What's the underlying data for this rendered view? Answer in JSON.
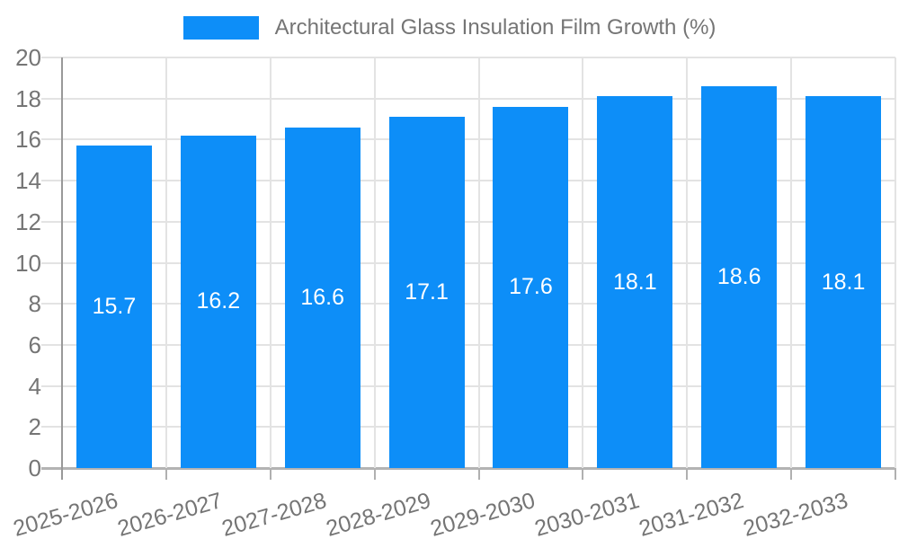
{
  "chart_data": {
    "type": "bar",
    "title": "Architectural Glass Insulation Film Growth (%)",
    "categories": [
      "2025-2026",
      "2026-2027",
      "2027-2028",
      "2028-2029",
      "2029-2030",
      "2030-2031",
      "2031-2032",
      "2032-2033"
    ],
    "values": [
      15.7,
      16.2,
      16.6,
      17.1,
      17.6,
      18.1,
      18.6,
      18.1
    ],
    "bar_labels": [
      "15.7",
      "16.2",
      "16.6",
      "17.1",
      "17.6",
      "18.1",
      "18.6",
      "18.1"
    ],
    "xlabel": "",
    "ylabel": "",
    "ylim": [
      0,
      20
    ],
    "ytick_step": 2,
    "yticks": [
      0,
      2,
      4,
      6,
      8,
      10,
      12,
      14,
      16,
      18,
      20
    ],
    "grid": true,
    "legend_position": "top-center",
    "xtick_rotation_deg": -16,
    "colors": {
      "bar": "#0D8EF8",
      "bar_label_text": "#ffffff",
      "axis_line": "#999999",
      "zero_line": "#b3b3b3",
      "gridline": "#e3e3e3",
      "tick_mark": "#b0b0b0",
      "tick_text": "#757575",
      "legend_text": "#757575",
      "background": "#ffffff"
    }
  }
}
